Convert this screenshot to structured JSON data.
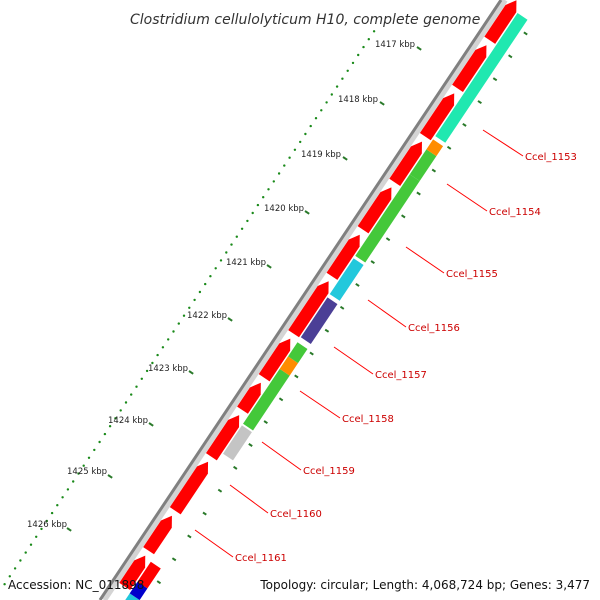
{
  "title": "Clostridium cellulolyticum H10, complete genome",
  "footer": {
    "accession": "Accession: NC_011898",
    "summary": "Topology: circular; Length: 4,068,724 bp; Genes: 3,477"
  },
  "ticks": [
    "1417 kbp",
    "1418 kbp",
    "1419 kbp",
    "1420 kbp",
    "1421 kbp",
    "1422 kbp",
    "1423 kbp",
    "1424 kbp",
    "1425 kbp",
    "1426 kbp"
  ],
  "gene_labels": [
    "Ccel_1153",
    "Ccel_1154",
    "Ccel_1155",
    "Ccel_1156",
    "Ccel_1157",
    "Ccel_1158",
    "Ccel_1159",
    "Ccel_1160",
    "Ccel_1161"
  ],
  "colors": {
    "forward_strand": "#ff0000",
    "backbone": "#808080",
    "tick_dots": "#1a8a1a",
    "tick_marks": "#2a7a2a",
    "label_lines": "#ff0000",
    "teal": "#20e8b0",
    "orange": "#ff8c00",
    "green": "#44c83a",
    "cyan": "#22c8dc",
    "purple": "#4b3f96",
    "gray": "#c4c4c4",
    "blue": "#0000cc"
  }
}
